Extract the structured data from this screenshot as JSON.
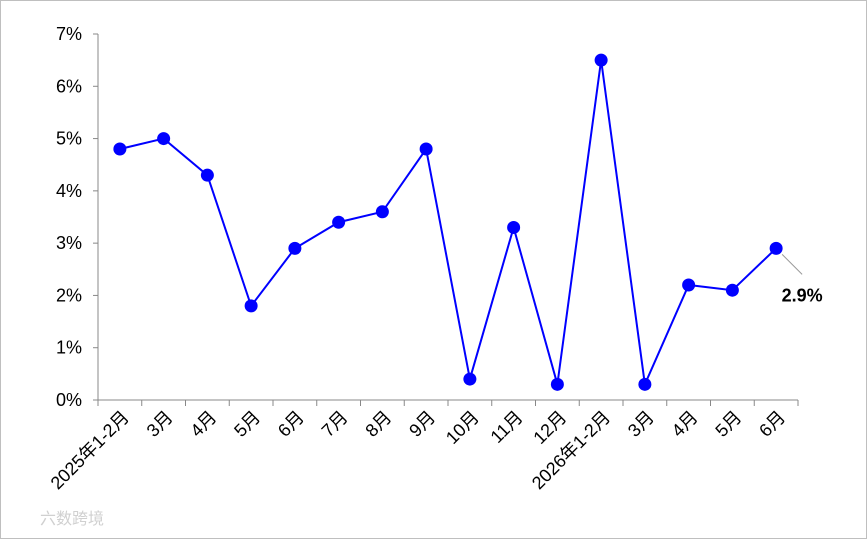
{
  "chart_data": {
    "type": "line",
    "categories": [
      "2025年1-2月",
      "3月",
      "4月",
      "5月",
      "6月",
      "7月",
      "8月",
      "9月",
      "10月",
      "11月",
      "12月",
      "2026年1-2月",
      "3月",
      "4月",
      "5月",
      "6月"
    ],
    "values": [
      4.8,
      5.0,
      4.3,
      1.8,
      2.9,
      3.4,
      3.6,
      4.8,
      0.4,
      3.3,
      0.3,
      6.5,
      0.3,
      2.2,
      2.1,
      2.9
    ],
    "value_labels": [
      null,
      null,
      null,
      null,
      null,
      null,
      null,
      null,
      null,
      null,
      null,
      null,
      null,
      null,
      null,
      "2.9%"
    ],
    "color": "#0000ff",
    "ylim": [
      0,
      7
    ],
    "yticks": [
      {
        "value": 0,
        "label": "0%"
      },
      {
        "value": 1,
        "label": "1%"
      },
      {
        "value": 2,
        "label": "2%"
      },
      {
        "value": 3,
        "label": "3%"
      },
      {
        "value": 4,
        "label": "4%"
      },
      {
        "value": 5,
        "label": "5%"
      },
      {
        "value": 6,
        "label": "6%"
      },
      {
        "value": 7,
        "label": "7%"
      }
    ],
    "grid": false,
    "watermark": "六数跨境"
  }
}
